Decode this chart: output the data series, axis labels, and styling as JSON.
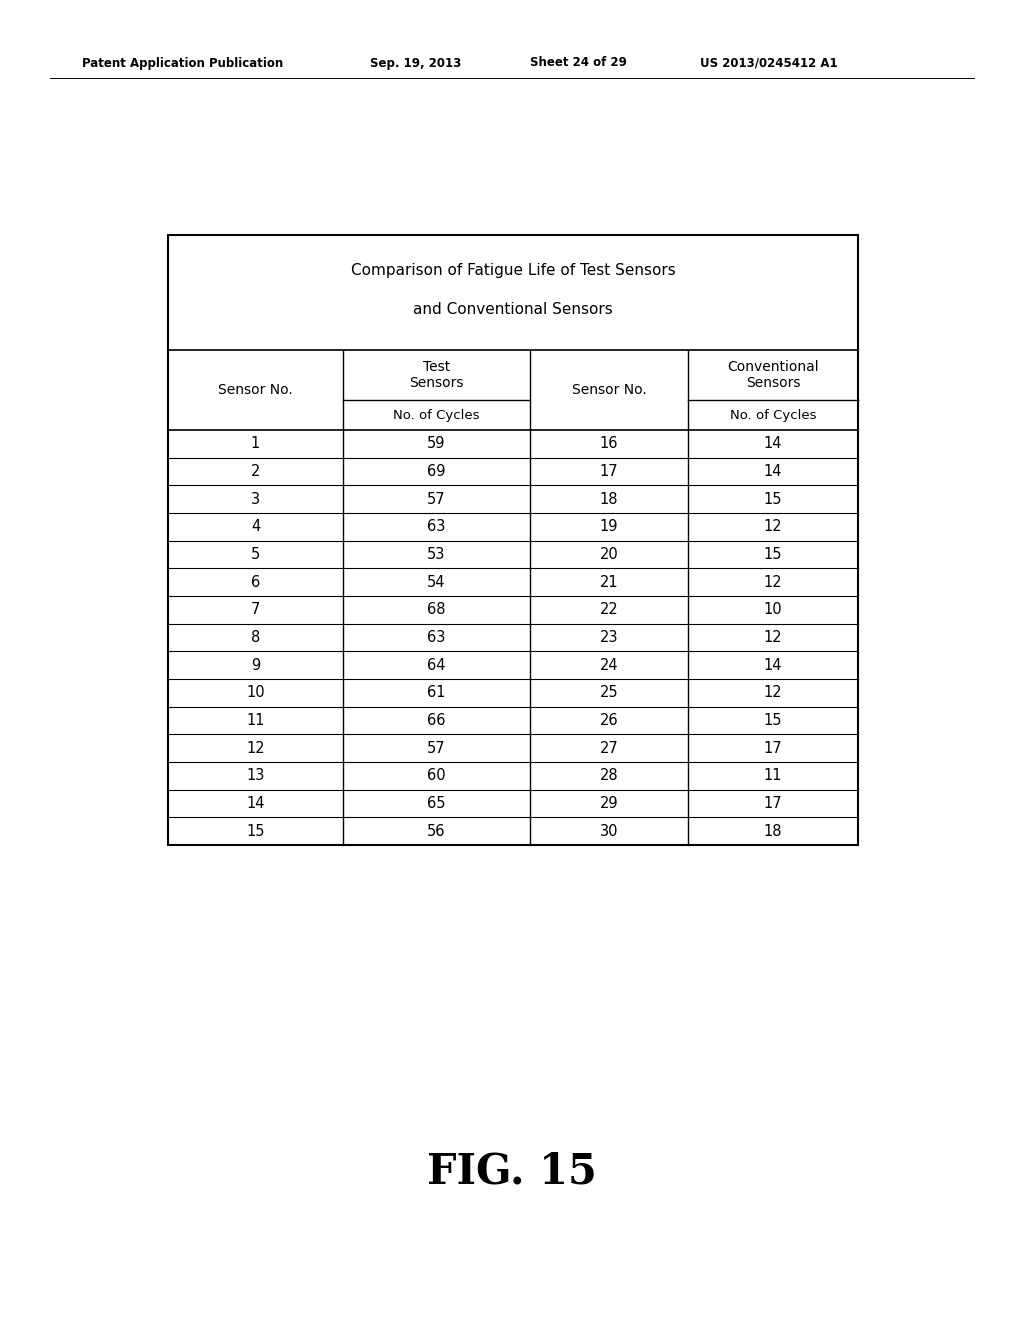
{
  "header_text": "Patent Application Publication",
  "header_date": "Sep. 19, 2013",
  "header_sheet": "Sheet 24 of 29",
  "header_patent": "US 2013/0245412 A1",
  "table_title_line1": "Comparison of Fatigue Life of Test Sensors",
  "table_title_line2": "and Conventional Sensors",
  "test_sensor_nos": [
    1,
    2,
    3,
    4,
    5,
    6,
    7,
    8,
    9,
    10,
    11,
    12,
    13,
    14,
    15
  ],
  "test_cycles": [
    59,
    69,
    57,
    63,
    53,
    54,
    68,
    63,
    64,
    61,
    66,
    57,
    60,
    65,
    56
  ],
  "conv_sensor_nos": [
    16,
    17,
    18,
    19,
    20,
    21,
    22,
    23,
    24,
    25,
    26,
    27,
    28,
    29,
    30
  ],
  "conv_cycles": [
    14,
    14,
    15,
    12,
    15,
    12,
    10,
    12,
    14,
    12,
    15,
    17,
    11,
    17,
    18
  ],
  "figure_label": "FIG. 15",
  "background_color": "#ffffff",
  "text_color": "#000000"
}
